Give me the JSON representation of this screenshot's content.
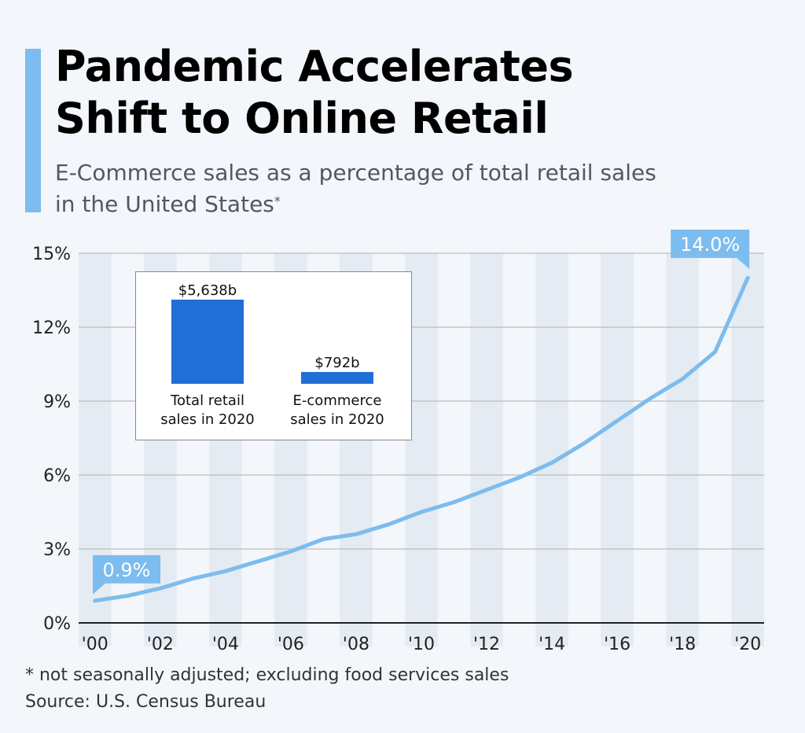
{
  "header": {
    "title_line1": "Pandemic Accelerates",
    "title_line2": "Shift to Online Retail",
    "subtitle_line1": "E-Commerce sales as a percentage of total retail sales",
    "subtitle_line2": "in the United States",
    "subtitle_mark": "*"
  },
  "colors": {
    "accent": "#7dbcee",
    "bar": "#1f6fd6",
    "stripe": "#e5ebf3",
    "grid": "#bcbcbc",
    "axis": "#222222",
    "background": "#f3f6fa"
  },
  "chart_data": [
    {
      "type": "line",
      "title": "E-Commerce sales as a percentage of total retail sales in the United States",
      "xlabel": "",
      "ylabel": "",
      "x": [
        2000,
        2001,
        2002,
        2003,
        2004,
        2005,
        2006,
        2007,
        2008,
        2009,
        2010,
        2011,
        2012,
        2013,
        2014,
        2015,
        2016,
        2017,
        2018,
        2019,
        2020
      ],
      "x_tick_labels": [
        "'00",
        "'02",
        "'04",
        "'06",
        "'08",
        "'10",
        "'12",
        "'14",
        "'16",
        "'18",
        "'20"
      ],
      "x_tick_values": [
        2000,
        2002,
        2004,
        2006,
        2008,
        2010,
        2012,
        2014,
        2016,
        2018,
        2020
      ],
      "series": [
        {
          "name": "E-commerce share of retail sales",
          "values": [
            0.9,
            1.1,
            1.4,
            1.8,
            2.1,
            2.5,
            2.9,
            3.4,
            3.6,
            4.0,
            4.5,
            4.9,
            5.4,
            5.9,
            6.5,
            7.3,
            8.2,
            9.1,
            9.9,
            11.0,
            14.0
          ]
        }
      ],
      "ylim": [
        0,
        15
      ],
      "y_ticks": [
        0,
        3,
        6,
        9,
        12,
        15
      ],
      "y_tick_labels": [
        "0%",
        "3%",
        "6%",
        "9%",
        "12%",
        "15%"
      ],
      "grid": true,
      "annotations": [
        {
          "label": "0.9%",
          "x": 2000,
          "y": 0.9
        },
        {
          "label": "14.0%",
          "x": 2020,
          "y": 14.0
        }
      ]
    },
    {
      "type": "bar",
      "title": "",
      "categories": [
        "Total retail sales in 2020",
        "E-commerce sales in 2020"
      ],
      "category_lines": [
        [
          "Total retail",
          "sales in 2020"
        ],
        [
          "E-commerce",
          "sales in 2020"
        ]
      ],
      "values": [
        5638,
        792
      ],
      "value_labels": [
        "$5,638b",
        "$792b"
      ],
      "unit": "billion USD"
    }
  ],
  "footer": {
    "note": "* not seasonally adjusted; excluding food services sales",
    "source": "Source: U.S. Census Bureau"
  }
}
